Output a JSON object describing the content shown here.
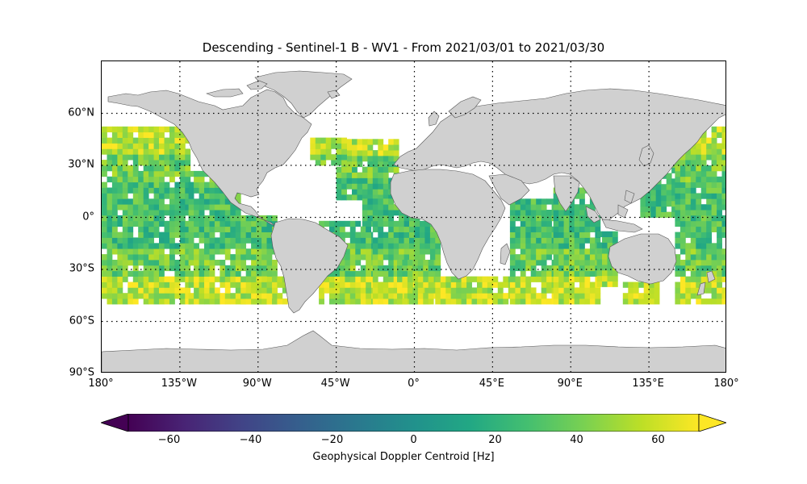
{
  "title": "Descending - Sentinel-1 B - WV1 - From 2021/03/01 to 2021/03/30",
  "map": {
    "projection": "PlateCarree",
    "extent": {
      "lon": [
        -180,
        180
      ],
      "lat": [
        -90,
        90
      ]
    },
    "land_color": "#d0d0d0",
    "coastline_color": "#555555",
    "gridlines": "dotted",
    "lat_ticks": [
      {
        "value": 60,
        "label": "60°N"
      },
      {
        "value": 30,
        "label": "30°N"
      },
      {
        "value": 0,
        "label": "0°"
      },
      {
        "value": -30,
        "label": "30°S"
      },
      {
        "value": -60,
        "label": "60°S"
      },
      {
        "value": -90,
        "label": "90°S"
      }
    ],
    "lon_ticks": [
      {
        "value": -180,
        "label": "180°"
      },
      {
        "value": -135,
        "label": "135°W"
      },
      {
        "value": -90,
        "label": "90°W"
      },
      {
        "value": -45,
        "label": "45°W"
      },
      {
        "value": 0,
        "label": "0°"
      },
      {
        "value": 45,
        "label": "45°E"
      },
      {
        "value": 90,
        "label": "90°E"
      },
      {
        "value": 135,
        "label": "135°E"
      },
      {
        "value": 180,
        "label": "180°"
      }
    ]
  },
  "chart_data": {
    "type": "heatmap",
    "variable": "Geophysical Doppler Centroid [Hz]",
    "coverage_lat": [
      -50,
      50
    ],
    "value_range": [
      -70,
      70
    ],
    "dominant_values": "mostly 20 to 70 Hz (green to yellow), highest (yellow) near 40–50°S and 40–50°N",
    "ocean_basins_with_data": [
      "North Pacific",
      "South Pacific",
      "North Atlantic",
      "South Atlantic",
      "Indian Ocean",
      "Western Pacific"
    ]
  },
  "colorbar": {
    "colormap": "viridis",
    "range": [
      -70,
      70
    ],
    "extend": "both",
    "ticks": [
      {
        "value": -60,
        "label": "−60"
      },
      {
        "value": -40,
        "label": "−40"
      },
      {
        "value": -20,
        "label": "−20"
      },
      {
        "value": 0,
        "label": "0"
      },
      {
        "value": 20,
        "label": "20"
      },
      {
        "value": 40,
        "label": "40"
      },
      {
        "value": 60,
        "label": "60"
      }
    ],
    "label": "Geophysical Doppler Centroid [Hz]"
  }
}
